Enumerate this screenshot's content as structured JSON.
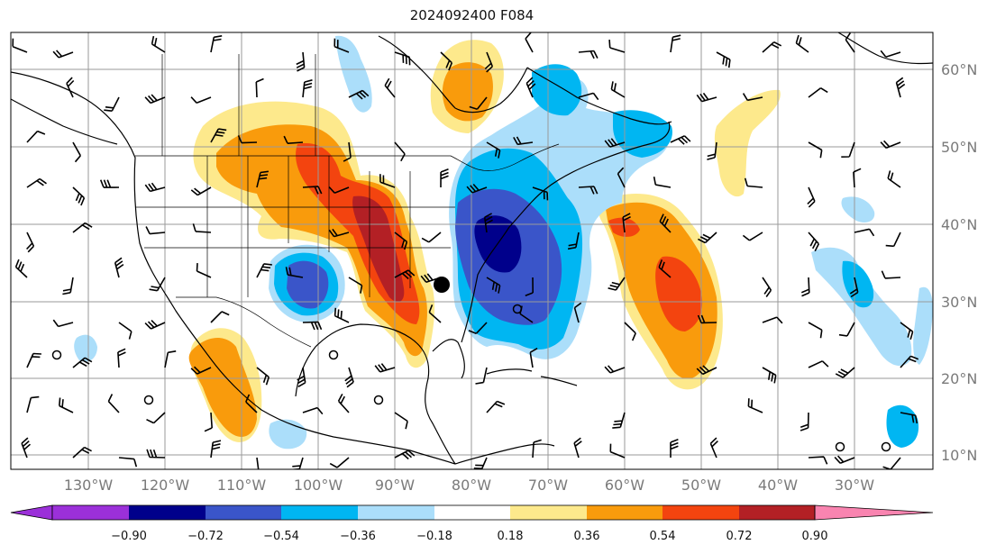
{
  "title": "2024092400 F084",
  "latitude_labels": [
    "60°N",
    "50°N",
    "40°N",
    "30°N",
    "20°N",
    "10°N"
  ],
  "longitude_labels": [
    "130°W",
    "120°W",
    "110°W",
    "100°W",
    "90°W",
    "80°W",
    "70°W",
    "60°W",
    "50°W",
    "40°W",
    "30°W"
  ],
  "colorbar": {
    "ticks": [
      "−0.90",
      "−0.72",
      "−0.54",
      "−0.36",
      "−0.18",
      "0.18",
      "0.36",
      "0.54",
      "0.72",
      "0.90"
    ],
    "colors": [
      "#9b30d9",
      "#00008b",
      "#3a55c9",
      "#00b6f2",
      "#abdefa",
      "#ffffff",
      "#fde98c",
      "#f99b0c",
      "#f3440f",
      "#b32025",
      "#f984b0"
    ]
  },
  "colors": {
    "grid": "#9a9a9a",
    "coast": "#000000",
    "border": "#000000"
  },
  "icons": [
    "wind-barb-icon",
    "hurricane-center-icon",
    "calm-wind-circle-icon"
  ]
}
